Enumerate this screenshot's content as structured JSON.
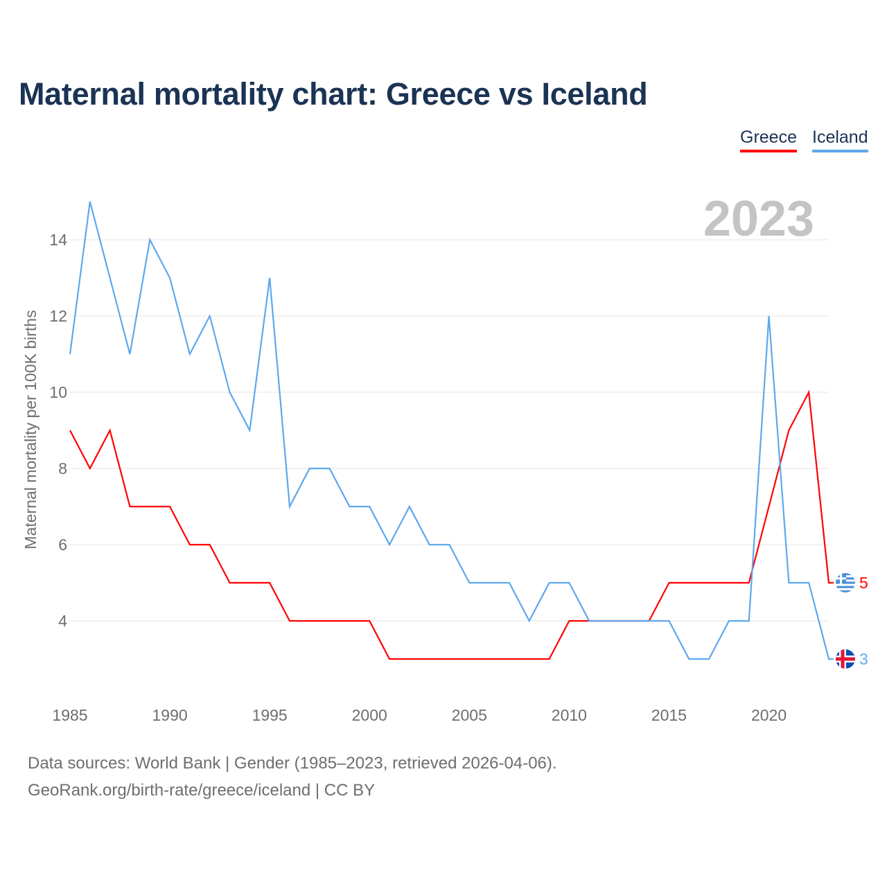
{
  "colors": {
    "greece": "#ff0000",
    "iceland": "#5da8ee",
    "title": "#1b3354",
    "grid": "#e6e6e6",
    "year_watermark": "#c4c4c4"
  },
  "chart_data": {
    "type": "line",
    "title": "Maternal mortality chart: Greece vs Iceland",
    "ylabel": "Maternal mortality per 100K births",
    "xlabel": "",
    "year_label": "2023",
    "x": [
      1985,
      1986,
      1987,
      1988,
      1989,
      1990,
      1991,
      1992,
      1993,
      1994,
      1995,
      1996,
      1997,
      1998,
      1999,
      2000,
      2001,
      2002,
      2003,
      2004,
      2005,
      2006,
      2007,
      2008,
      2009,
      2010,
      2011,
      2012,
      2013,
      2014,
      2015,
      2016,
      2017,
      2018,
      2019,
      2020,
      2021,
      2022,
      2023
    ],
    "xlim": [
      1985,
      2023
    ],
    "ylim": [
      2.2,
      15.5
    ],
    "xticks": [
      "1985",
      "1990",
      "1995",
      "2000",
      "2005",
      "2010",
      "2015",
      "2020"
    ],
    "yticks": [
      "4",
      "6",
      "8",
      "10",
      "12",
      "14"
    ],
    "grid": true,
    "legend_position": "top-right",
    "series": [
      {
        "name": "Greece",
        "flag": "greece-flag",
        "end_label": "5",
        "values": [
          9,
          8,
          9,
          7,
          7,
          7,
          6,
          6,
          5,
          5,
          5,
          4,
          4,
          4,
          4,
          4,
          3,
          3,
          3,
          3,
          3,
          3,
          3,
          3,
          3,
          4,
          4,
          4,
          4,
          4,
          5,
          5,
          5,
          5,
          5,
          7,
          9,
          10,
          5
        ]
      },
      {
        "name": "Iceland",
        "flag": "iceland-flag",
        "end_label": "3",
        "values": [
          11,
          15,
          13,
          11,
          14,
          13,
          11,
          12,
          10,
          9,
          13,
          7,
          8,
          8,
          7,
          7,
          6,
          7,
          6,
          6,
          5,
          5,
          5,
          4,
          5,
          5,
          4,
          4,
          4,
          4,
          4,
          3,
          3,
          4,
          4,
          12,
          5,
          5,
          3
        ]
      }
    ]
  },
  "footer": {
    "line1": "Data sources: World Bank | Gender (1985–2023, retrieved 2026-04-06).",
    "line2": "GeoRank.org/birth-rate/greece/iceland | CC BY"
  }
}
